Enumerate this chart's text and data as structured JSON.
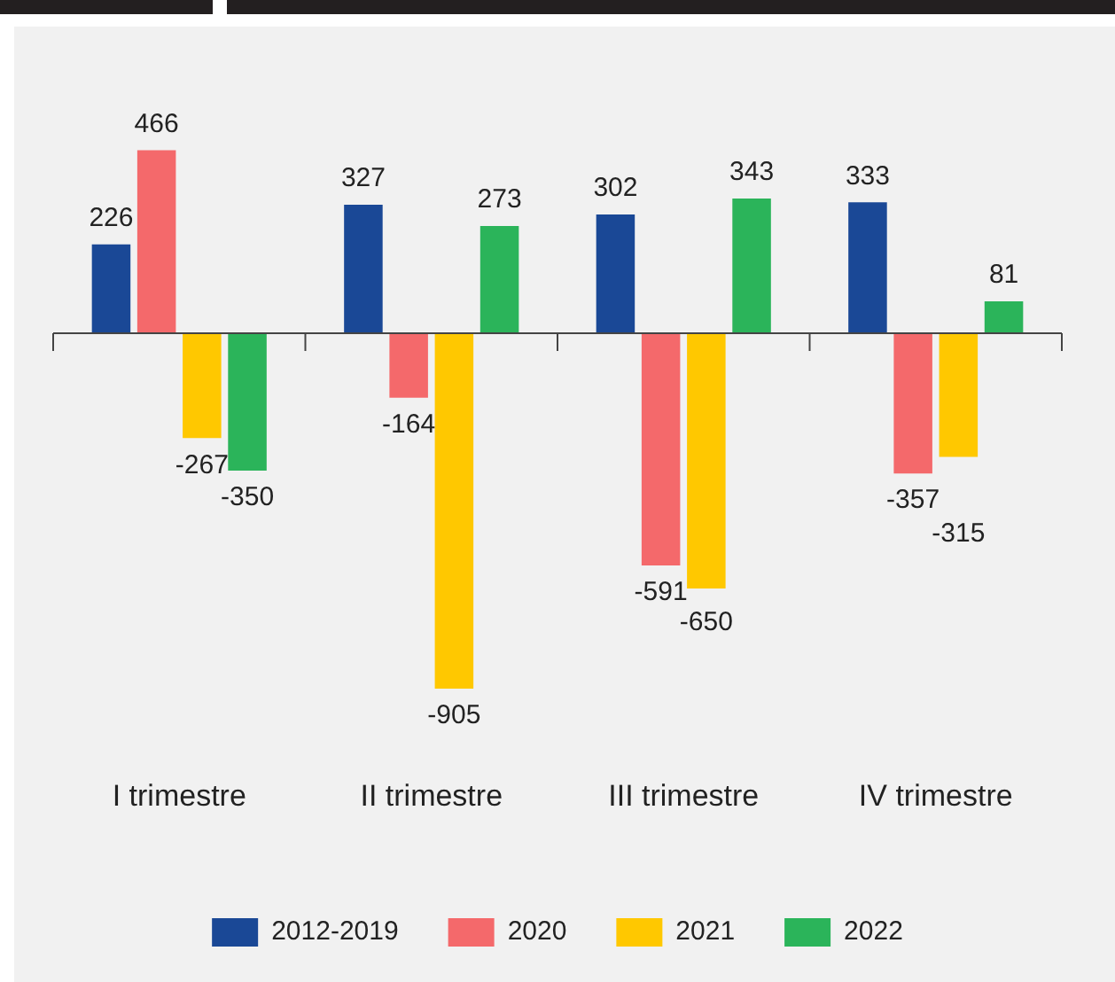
{
  "chart_data": {
    "type": "bar",
    "categories": [
      "I trimestre",
      "II trimestre",
      "III trimestre",
      "IV trimestre"
    ],
    "series": [
      {
        "name": "2012-2019",
        "color": "#1a4896",
        "values": [
          226,
          327,
          302,
          333
        ]
      },
      {
        "name": "2020",
        "color": "#f4696b",
        "values": [
          466,
          -164,
          -591,
          -357
        ]
      },
      {
        "name": "2021",
        "color": "#ffc800",
        "values": [
          -267,
          -905,
          -650,
          -315
        ]
      },
      {
        "name": "2022",
        "color": "#2bb45a",
        "values": [
          -350,
          273,
          343,
          81
        ]
      }
    ],
    "data_labels": true,
    "legend": "bottom",
    "grid": false
  }
}
